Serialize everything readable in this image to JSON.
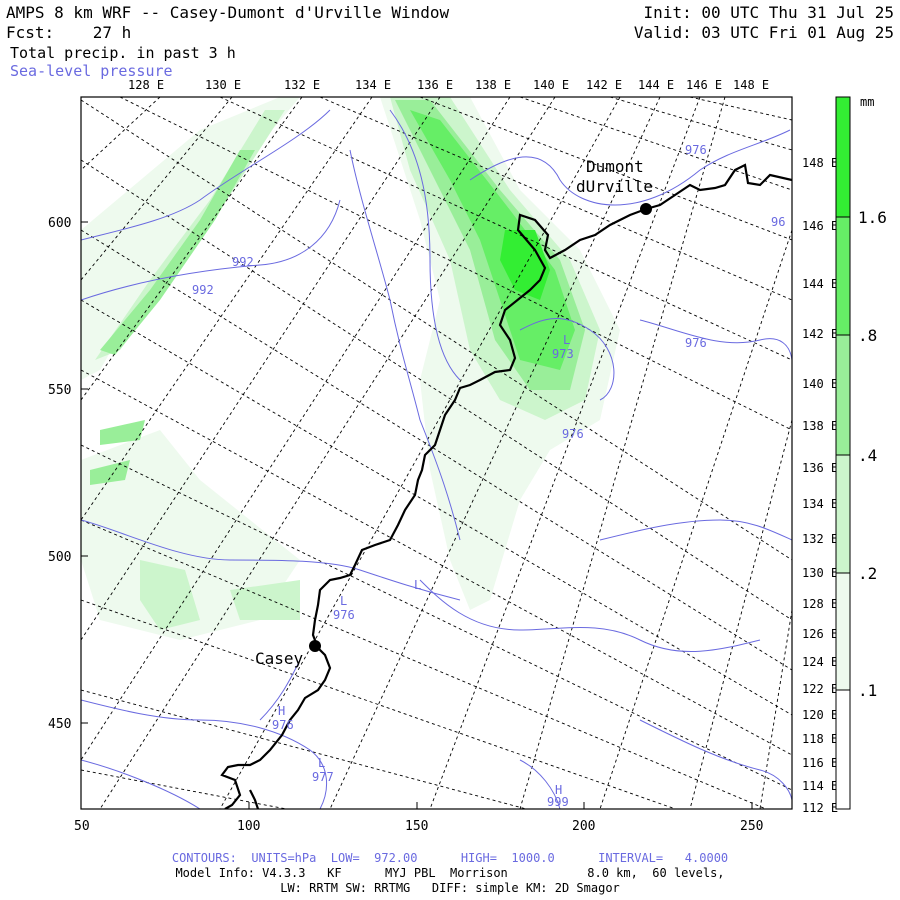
{
  "header": {
    "title": "AMPS 8 km WRF -- Casey-Dumont d'Urville Window",
    "fcst": "Fcst:    27 h",
    "field1": "Total precip. in past 3 h",
    "field2": "Sea-level pressure",
    "init": "Init: 00 UTC Thu 31 Jul 25",
    "valid": "Valid: 03 UTC Fri 01 Aug 25"
  },
  "top_lon_labels": [
    "128 E",
    "130 E",
    "132 E",
    "134 E",
    "136 E",
    "138 E",
    "140 E",
    "142 E",
    "144 E",
    "146 E",
    "148 E"
  ],
  "right_lon_labels": [
    "148 E",
    "146 E",
    "144 E",
    "142 E",
    "140 E",
    "138 E",
    "136 E",
    "134 E",
    "132 E",
    "130 E",
    "128 E",
    "126 E",
    "124 E",
    "122 E",
    "120 E",
    "118 E",
    "116 E",
    "114 E",
    "112 E"
  ],
  "left_y_labels": [
    "600",
    "550",
    "500",
    "450"
  ],
  "bottom_x_labels": [
    "50",
    "100",
    "150",
    "200",
    "250"
  ],
  "stations": [
    {
      "name": "Dumont",
      "name2": "dUrville"
    },
    {
      "name": "Casey"
    }
  ],
  "pressure_labels": [
    "976",
    "992",
    "992",
    "976",
    "973",
    "976",
    "976",
    "976",
    "977",
    "999",
    "96"
  ],
  "pressure_marks": [
    "L",
    "L",
    "L",
    "H",
    "H",
    "L"
  ],
  "colorbar": {
    "unit": "mm",
    "levels": [
      "1.6",
      ".8",
      ".4",
      ".2",
      ".1"
    ],
    "colors": [
      "#33ee33",
      "#66ee66",
      "#99ee99",
      "#ccf5cc",
      "#eefaee"
    ]
  },
  "footer": {
    "contours": "CONTOURS:  UNITS=hPa  LOW=  972.00      HIGH=  1000.0      INTERVAL=   4.0000",
    "model": "Model Info: V4.3.3   KF      MYJ PBL  Morrison           8.0 km,  60 levels,",
    "physics": "LW: RRTM SW: RRTMG   DIFF: simple KM: 2D Smagor"
  }
}
